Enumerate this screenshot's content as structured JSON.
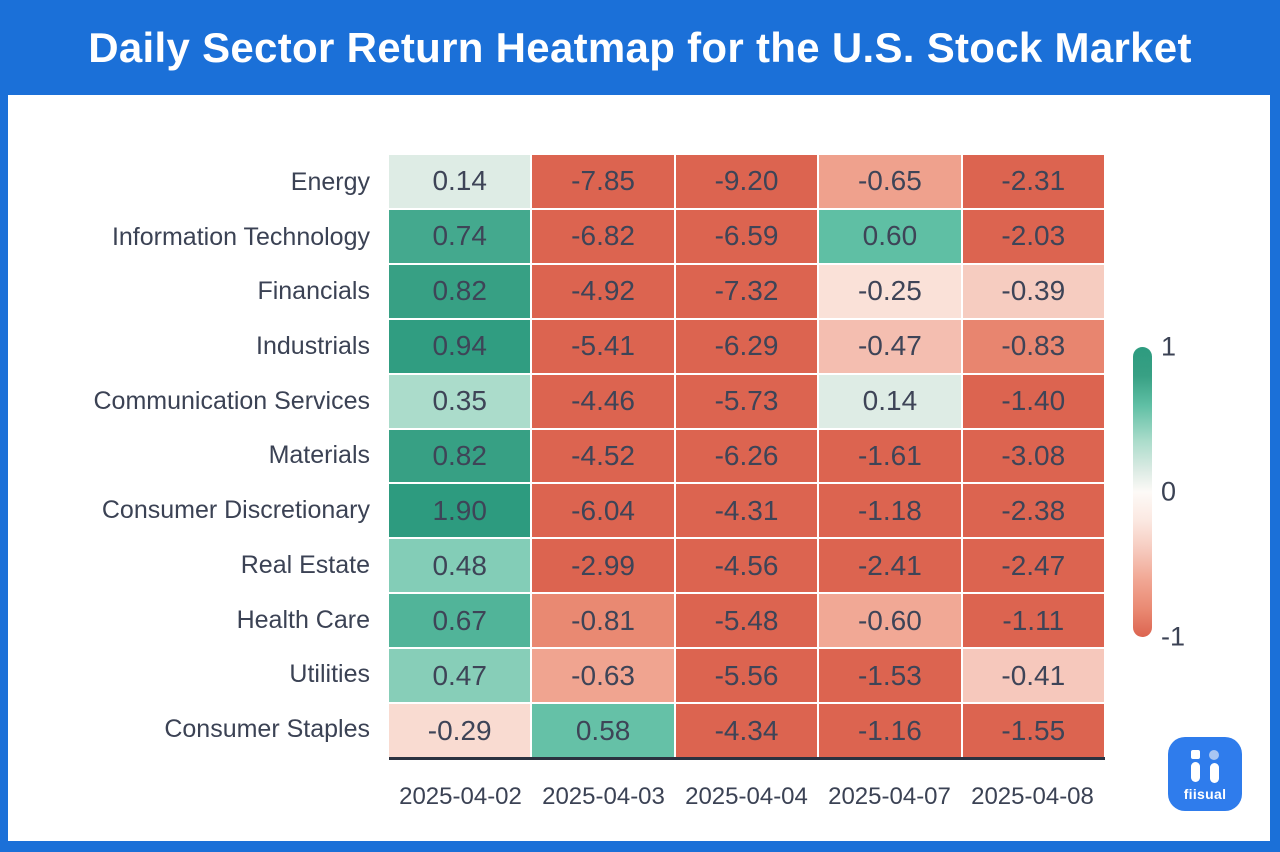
{
  "header": {
    "title": "Daily Sector Return Heatmap for the U.S. Stock Market",
    "background_color": "#1b70d8",
    "text_color": "#ffffff"
  },
  "chart_data": {
    "type": "heatmap",
    "title": "Daily Sector Return Heatmap for the U.S. Stock Market",
    "rows": [
      "Energy",
      "Information Technology",
      "Financials",
      "Industrials",
      "Communication Services",
      "Materials",
      "Consumer Discretionary",
      "Real Estate",
      "Health Care",
      "Utilities",
      "Consumer Staples"
    ],
    "columns": [
      "2025-04-02",
      "2025-04-03",
      "2025-04-04",
      "2025-04-07",
      "2025-04-08"
    ],
    "values": [
      [
        0.14,
        -7.85,
        -9.2,
        -0.65,
        -2.31
      ],
      [
        0.74,
        -6.82,
        -6.59,
        0.6,
        -2.03
      ],
      [
        0.82,
        -4.92,
        -7.32,
        -0.25,
        -0.39
      ],
      [
        0.94,
        -5.41,
        -6.29,
        -0.47,
        -0.83
      ],
      [
        0.35,
        -4.46,
        -5.73,
        0.14,
        -1.4
      ],
      [
        0.82,
        -4.52,
        -6.26,
        -1.61,
        -3.08
      ],
      [
        1.9,
        -6.04,
        -4.31,
        -1.18,
        -2.38
      ],
      [
        0.48,
        -2.99,
        -4.56,
        -2.41,
        -2.47
      ],
      [
        0.67,
        -0.81,
        -5.48,
        -0.6,
        -1.11
      ],
      [
        0.47,
        -0.63,
        -5.56,
        -1.53,
        -0.41
      ],
      [
        -0.29,
        0.58,
        -4.34,
        -1.16,
        -1.55
      ]
    ],
    "decimals": 2,
    "clamp_range": [
      -1,
      1
    ],
    "grid": false,
    "legend_position": "right",
    "colorbar_ticks": [
      {
        "label": "1",
        "value": 1
      },
      {
        "label": "0",
        "value": 0
      },
      {
        "label": "-1",
        "value": -1
      }
    ],
    "colorscale": [
      {
        "v": -1.0,
        "color": "#dc6450"
      },
      {
        "v": -0.8,
        "color": "#ea8b74"
      },
      {
        "v": -0.6,
        "color": "#f1a895"
      },
      {
        "v": -0.4,
        "color": "#f6cabe"
      },
      {
        "v": -0.2,
        "color": "#fbe8e1"
      },
      {
        "v": 0.0,
        "color": "#fdfaf7"
      },
      {
        "v": 0.15,
        "color": "#dcebe4"
      },
      {
        "v": 0.35,
        "color": "#abdccb"
      },
      {
        "v": 0.6,
        "color": "#5fbfa4"
      },
      {
        "v": 0.8,
        "color": "#38a084"
      },
      {
        "v": 1.0,
        "color": "#2d9b7f"
      }
    ],
    "cell_text_color": "#3e4457",
    "axis_label_color": "#3b4254",
    "axis_line_color": "#2b3240"
  },
  "logo": {
    "text": "fiisual",
    "background_color": "#2f7cec",
    "accent_dot_color": "#a9c6f2"
  }
}
